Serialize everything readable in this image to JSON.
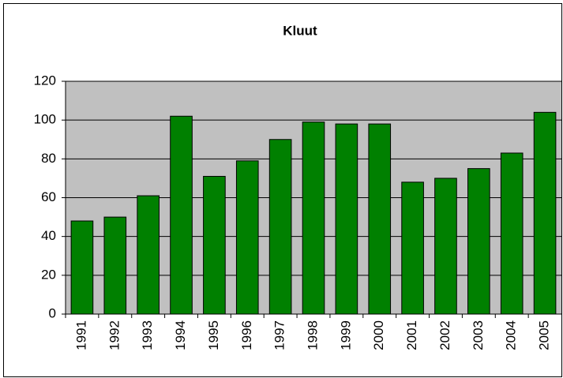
{
  "chart_data": {
    "type": "bar",
    "title": "Kluut",
    "categories": [
      "1991",
      "1992",
      "1993",
      "1994",
      "1995",
      "1996",
      "1997",
      "1998",
      "1999",
      "2000",
      "2001",
      "2002",
      "2003",
      "2004",
      "2005"
    ],
    "values": [
      48,
      50,
      61,
      102,
      71,
      79,
      90,
      99,
      98,
      98,
      68,
      70,
      75,
      83,
      104
    ],
    "color": "#008000",
    "ylim": [
      0,
      120
    ],
    "yticks": [
      0,
      20,
      40,
      60,
      80,
      100,
      120
    ],
    "grid": true
  }
}
